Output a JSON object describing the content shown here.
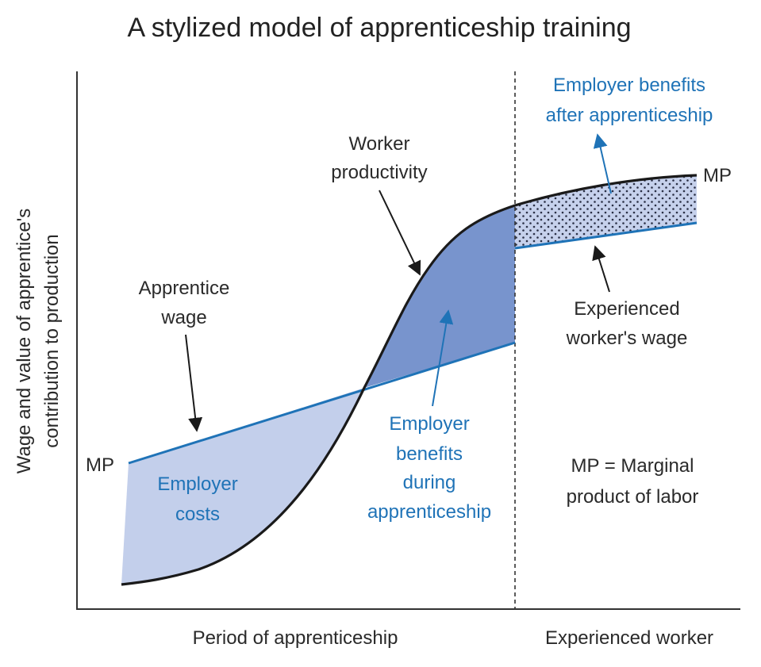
{
  "title": "A stylized model of apprenticeship training",
  "y_axis": {
    "line1": "Wage and value of apprentice's",
    "line2": "contribution to production"
  },
  "x_axis": {
    "period_label": "Period of apprenticeship",
    "experienced_label": "Experienced worker"
  },
  "labels": {
    "mp_left": "MP",
    "mp_right": "MP",
    "worker_productivity": [
      "Worker",
      "productivity"
    ],
    "apprentice_wage": [
      "Apprentice",
      "wage"
    ],
    "employer_costs": [
      "Employer",
      "costs"
    ],
    "employer_benefits_during": [
      "Employer",
      "benefits",
      "during",
      "apprenticeship"
    ],
    "employer_benefits_after": [
      "Employer benefits",
      "after apprenticeship"
    ],
    "experienced_wage": [
      "Experienced",
      "worker's wage"
    ],
    "mp_definition": [
      "MP = Marginal",
      "product of labor"
    ]
  },
  "colors": {
    "productivity_curve": "#1a1a1a",
    "wage_line": "#1f73b7",
    "costs_fill": "#c3cfeb",
    "benefits_fill": "#7894cd",
    "after_fill": "#c6d1ec",
    "blue_text": "#1f73b7"
  }
}
